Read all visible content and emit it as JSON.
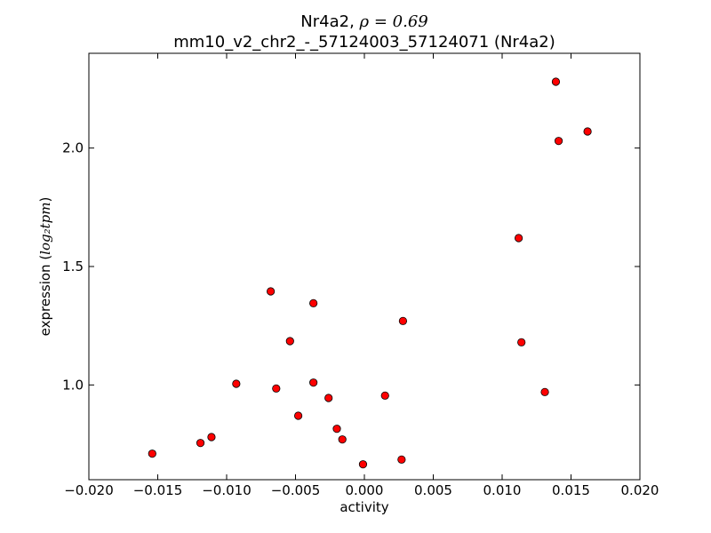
{
  "chart_data": {
    "type": "scatter",
    "title_line1_prefix": "Nr4a2, ",
    "title_line1_math": "ρ = 0.69",
    "title_line2": "mm10_v2_chr2_-_57124003_57124071 (Nr4a2)",
    "xlabel": "activity",
    "ylabel_prefix": "expression (",
    "ylabel_math": "log₂tpm",
    "ylabel_suffix": ")",
    "xlim": [
      -0.02,
      0.02
    ],
    "ylim": [
      0.6,
      2.4
    ],
    "xticks": [
      -0.02,
      -0.015,
      -0.01,
      -0.005,
      0.0,
      0.005,
      0.01,
      0.015,
      0.02
    ],
    "xtick_labels": [
      "−0.020",
      "−0.015",
      "−0.010",
      "−0.005",
      "0.000",
      "0.005",
      "0.010",
      "0.015",
      "0.020"
    ],
    "yticks": [
      1.0,
      1.5,
      2.0
    ],
    "ytick_labels": [
      "1.0",
      "1.5",
      "2.0"
    ],
    "grid": false,
    "marker_color": "#ff0000",
    "marker_edge": "#000000",
    "points": [
      {
        "x": -0.0154,
        "y": 0.71
      },
      {
        "x": -0.0119,
        "y": 0.755
      },
      {
        "x": -0.0111,
        "y": 0.78
      },
      {
        "x": -0.0093,
        "y": 1.005
      },
      {
        "x": -0.0068,
        "y": 1.395
      },
      {
        "x": -0.0064,
        "y": 0.985
      },
      {
        "x": -0.0054,
        "y": 1.185
      },
      {
        "x": -0.0048,
        "y": 0.87
      },
      {
        "x": -0.0037,
        "y": 1.345
      },
      {
        "x": -0.0037,
        "y": 1.01
      },
      {
        "x": -0.0026,
        "y": 0.945
      },
      {
        "x": -0.002,
        "y": 0.815
      },
      {
        "x": -0.0016,
        "y": 0.77
      },
      {
        "x": -0.0001,
        "y": 0.665
      },
      {
        "x": 0.0015,
        "y": 0.955
      },
      {
        "x": 0.0027,
        "y": 0.685
      },
      {
        "x": 0.0028,
        "y": 1.27
      },
      {
        "x": 0.0112,
        "y": 1.62
      },
      {
        "x": 0.0114,
        "y": 1.18
      },
      {
        "x": 0.0131,
        "y": 0.97
      },
      {
        "x": 0.0139,
        "y": 2.28
      },
      {
        "x": 0.0141,
        "y": 2.03
      },
      {
        "x": 0.0162,
        "y": 2.07
      }
    ]
  }
}
